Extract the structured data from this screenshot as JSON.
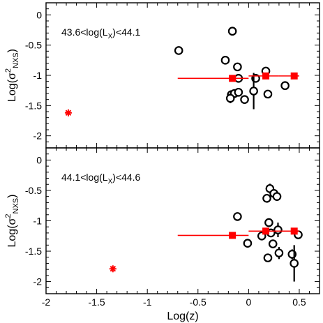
{
  "colors": {
    "axis": "#000000",
    "open_marker": "#000000",
    "binned": "#ff0000",
    "outlier": "#ff0000"
  },
  "chart_data": [
    {
      "type": "scatter",
      "panel": "top",
      "annotation": {
        "text_prefix": "43.6<log(L",
        "text_sub": "X",
        "text_suffix": ")<44.1"
      },
      "ylabel": {
        "main": "Log(σ",
        "sup": "2",
        "sub": "NXS",
        "close": ")"
      },
      "xlabel": "",
      "xlim": [
        -2,
        0.7
      ],
      "ylim": [
        -2.2,
        0.2
      ],
      "xticks": [
        -2,
        -1.5,
        -1,
        -0.5,
        0,
        0.5
      ],
      "yticks": [
        0,
        -0.5,
        -1,
        -1.5,
        -2
      ],
      "ytick_labels": [
        "0",
        "-0.5",
        "-1",
        "-1.5",
        "-2"
      ],
      "tick_labels_x_shown": false,
      "series": [
        {
          "marker": "open-circle",
          "points": [
            {
              "x": -0.69,
              "y": -0.59
            },
            {
              "x": -0.23,
              "y": -0.75
            },
            {
              "x": -0.16,
              "y": -0.27
            },
            {
              "x": -0.11,
              "y": -0.86
            },
            {
              "x": -0.1,
              "y": -1.05
            },
            {
              "x": -0.17,
              "y": -1.32
            },
            {
              "x": -0.14,
              "y": -1.3
            },
            {
              "x": -0.18,
              "y": -1.38,
              "err": 0.08
            },
            {
              "x": -0.1,
              "y": -1.28
            },
            {
              "x": -0.04,
              "y": -1.4
            },
            {
              "x": 0.07,
              "y": -1.05
            },
            {
              "x": 0.05,
              "y": -1.26,
              "err": 0.3
            },
            {
              "x": 0.17,
              "y": -0.93
            },
            {
              "x": 0.19,
              "y": -1.31
            },
            {
              "x": 0.36,
              "y": -1.17
            }
          ]
        },
        {
          "marker": "filled-square",
          "points": [
            {
              "x": -0.16,
              "y": -1.05,
              "xerr_lo": -0.7,
              "xerr_hi": 0.0
            },
            {
              "x": 0.17,
              "y": -1.01,
              "xerr_lo": 0.0,
              "xerr_hi": 0.3
            },
            {
              "x": 0.45,
              "y": -1.01,
              "xerr_lo": 0.3,
              "xerr_hi": 0.5
            }
          ]
        },
        {
          "marker": "asterisk",
          "points": [
            {
              "x": -1.78,
              "y": -1.62
            }
          ]
        }
      ]
    },
    {
      "type": "scatter",
      "panel": "bottom",
      "annotation": {
        "text_prefix": "44.1<log(L",
        "text_sub": "X",
        "text_suffix": ")<44.6"
      },
      "ylabel": {
        "main": "Log(σ",
        "sup": "2",
        "sub": "NXS",
        "close": ")"
      },
      "xlabel": "Log(z)",
      "xlim": [
        -2,
        0.7
      ],
      "ylim": [
        -2.2,
        0.2
      ],
      "xticks": [
        -2,
        -1.5,
        -1,
        -0.5,
        0,
        0.5
      ],
      "xtick_labels": [
        "-2",
        "-1.5",
        "-1",
        "-0.5",
        "0",
        "0.5"
      ],
      "yticks": [
        0,
        -0.5,
        -1,
        -1.5,
        -2
      ],
      "ytick_labels": [
        "0",
        "-0.5",
        "-1",
        "-1.5",
        "-2"
      ],
      "series": [
        {
          "marker": "open-circle",
          "points": [
            {
              "x": -0.11,
              "y": -0.93
            },
            {
              "x": -0.01,
              "y": -1.37
            },
            {
              "x": 0.13,
              "y": -1.25
            },
            {
              "x": 0.18,
              "y": -0.63
            },
            {
              "x": 0.21,
              "y": -0.47,
              "err": 0.08
            },
            {
              "x": 0.25,
              "y": -0.55
            },
            {
              "x": 0.28,
              "y": -0.6
            },
            {
              "x": 0.2,
              "y": -1.03
            },
            {
              "x": 0.22,
              "y": -1.2
            },
            {
              "x": 0.24,
              "y": -1.38
            },
            {
              "x": 0.29,
              "y": -1.15,
              "err": 0.12
            },
            {
              "x": 0.3,
              "y": -1.53,
              "err": 0.1
            },
            {
              "x": 0.19,
              "y": -1.61
            },
            {
              "x": 0.43,
              "y": -1.55,
              "err": 0.08
            },
            {
              "x": 0.45,
              "y": -1.7,
              "err": 0.3
            },
            {
              "x": 0.49,
              "y": -1.23
            }
          ]
        },
        {
          "marker": "filled-square",
          "points": [
            {
              "x": -0.16,
              "y": -1.24,
              "xerr_lo": -0.7,
              "xerr_hi": 0.0
            },
            {
              "x": 0.17,
              "y": -1.17,
              "xerr_lo": 0.0,
              "xerr_hi": 0.3
            },
            {
              "x": 0.45,
              "y": -1.17,
              "xerr_lo": 0.3,
              "xerr_hi": 0.5
            }
          ]
        },
        {
          "marker": "asterisk",
          "points": [
            {
              "x": -1.34,
              "y": -1.79
            }
          ]
        }
      ]
    }
  ]
}
